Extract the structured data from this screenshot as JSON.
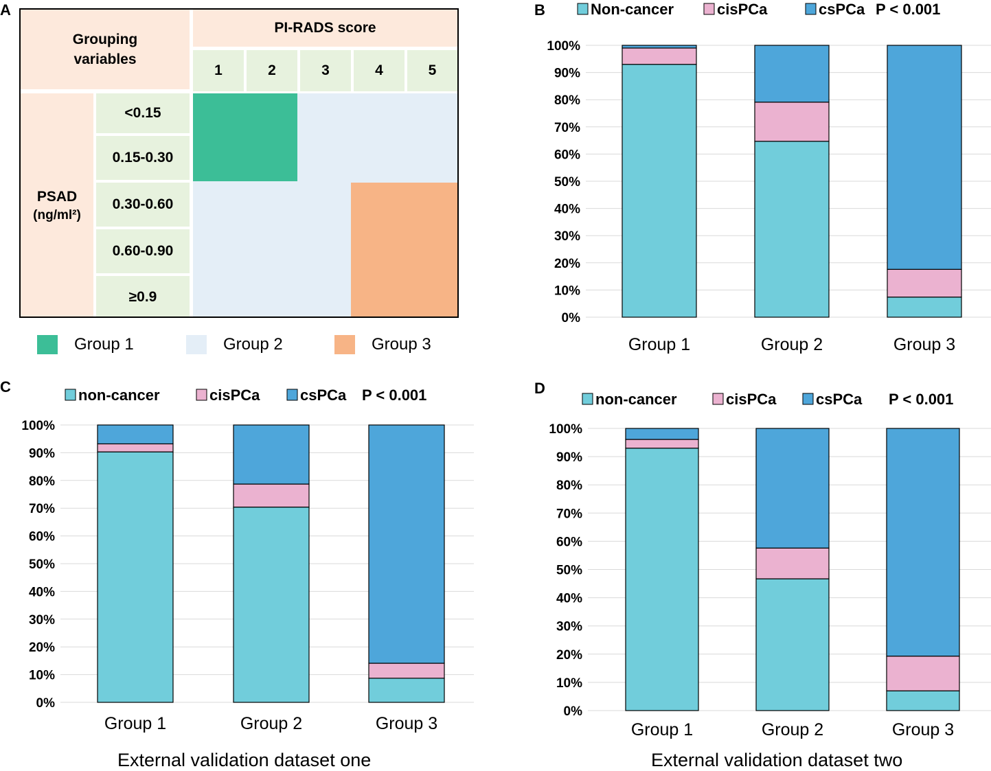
{
  "panels": {
    "a": {
      "letter": "A",
      "grouping_variables": "Grouping variables",
      "pirads_header": "PI-RADS score",
      "pirads_scores": [
        "1",
        "2",
        "3",
        "4",
        "5"
      ],
      "psad_label": "PSAD",
      "psad_unit": "(ng/ml²)",
      "psad_ranges": [
        "<0.15",
        "0.15-0.30",
        "0.30-0.60",
        "0.60-0.90",
        "≥0.9"
      ],
      "legend": [
        {
          "label": "Group 1",
          "color": "#3cbe97"
        },
        {
          "label": "Group 2",
          "color": "#e4eef7"
        },
        {
          "label": "Group 3",
          "color": "#f7b486"
        }
      ]
    },
    "b": {
      "letter": "B"
    },
    "c": {
      "letter": "C",
      "caption": "External validation dataset one"
    },
    "d": {
      "letter": "D",
      "caption": "External validation dataset two"
    }
  },
  "colors": {
    "noncancer": "#71cddb",
    "cispca": "#ebb2d0",
    "cspca": "#4ea6da"
  },
  "chart_data": [
    {
      "panel": "B",
      "type": "bar",
      "stacked": true,
      "categories": [
        "Group 1",
        "Group 2",
        "Group 3"
      ],
      "series": [
        {
          "name": "Non-cancer",
          "values": [
            93.0,
            64.7,
            7.4
          ]
        },
        {
          "name": "cisPCa",
          "values": [
            6.0,
            14.4,
            10.2
          ]
        },
        {
          "name": "csPCa",
          "values": [
            1.0,
            20.9,
            82.4
          ]
        }
      ],
      "p_value": "P < 0.001",
      "ylim": [
        0,
        100
      ],
      "yticks": [
        "0%",
        "10%",
        "20%",
        "30%",
        "40%",
        "50%",
        "60%",
        "70%",
        "80%",
        "90%",
        "100%"
      ],
      "title": "",
      "xlabel": "",
      "ylabel": ""
    },
    {
      "panel": "C",
      "type": "bar",
      "stacked": true,
      "categories": [
        "Group 1",
        "Group 2",
        "Group 3"
      ],
      "series": [
        {
          "name": "non-cancer",
          "values": [
            90.3,
            70.4,
            8.7
          ]
        },
        {
          "name": "cisPCa",
          "values": [
            2.9,
            8.3,
            5.4
          ]
        },
        {
          "name": "csPCa",
          "values": [
            6.8,
            21.3,
            85.9
          ]
        }
      ],
      "p_value": "P < 0.001",
      "ylim": [
        0,
        100
      ],
      "yticks": [
        "0%",
        "10%",
        "20%",
        "30%",
        "40%",
        "50%",
        "60%",
        "70%",
        "80%",
        "90%",
        "100%"
      ],
      "title": "",
      "xlabel": "External validation dataset one",
      "ylabel": ""
    },
    {
      "panel": "D",
      "type": "bar",
      "stacked": true,
      "categories": [
        "Group 1",
        "Group 2",
        "Group 3"
      ],
      "series": [
        {
          "name": "non-cancer",
          "values": [
            93.0,
            46.7,
            7.0
          ]
        },
        {
          "name": "cisPCa",
          "values": [
            3.1,
            10.9,
            12.3
          ]
        },
        {
          "name": "csPCa",
          "values": [
            3.9,
            42.4,
            80.7
          ]
        }
      ],
      "p_value": "P < 0.001",
      "ylim": [
        0,
        100
      ],
      "yticks": [
        "0%",
        "10%",
        "20%",
        "30%",
        "40%",
        "50%",
        "60%",
        "70%",
        "80%",
        "90%",
        "100%"
      ],
      "title": "",
      "xlabel": "External validation dataset two",
      "ylabel": ""
    }
  ]
}
